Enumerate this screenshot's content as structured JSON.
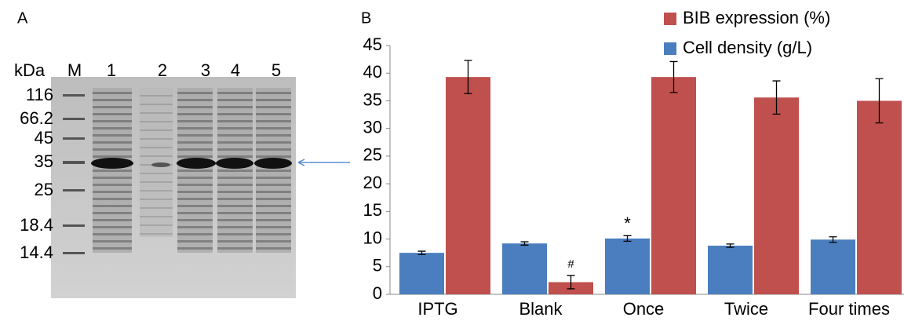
{
  "panel_a": {
    "label": "A",
    "unit_label": "kDa",
    "lanes": [
      "M",
      "1",
      "2",
      "3",
      "4",
      "5"
    ],
    "markers": [
      "116",
      "66.2",
      "45",
      "35",
      "25",
      "18.4",
      "14.4"
    ]
  },
  "chart_data": {
    "type": "bar",
    "label": "B",
    "categories": [
      "IPTG",
      "Blank",
      "Once",
      "Twice",
      "Four times"
    ],
    "series": [
      {
        "name": "Cell density (g/L)",
        "color": "#4a7ebf",
        "values": [
          7.5,
          9.2,
          10.1,
          8.8,
          9.9
        ],
        "errors": [
          0.3,
          0.3,
          0.5,
          0.3,
          0.5
        ]
      },
      {
        "name": "BIB expression (%)",
        "color": "#c0504d",
        "values": [
          39.3,
          2.2,
          39.3,
          35.6,
          35.0
        ],
        "errors": [
          3.0,
          1.2,
          2.8,
          3.0,
          4.0
        ]
      }
    ],
    "annotations": [
      {
        "text": "*",
        "category": "Once",
        "series": "Cell density (g/L)"
      },
      {
        "text": "#",
        "category": "Blank",
        "series": "BIB expression (%)"
      }
    ],
    "ylim": [
      0,
      45
    ],
    "yticks": [
      0,
      5,
      10,
      15,
      20,
      25,
      30,
      35,
      40,
      45
    ],
    "grid": false
  }
}
